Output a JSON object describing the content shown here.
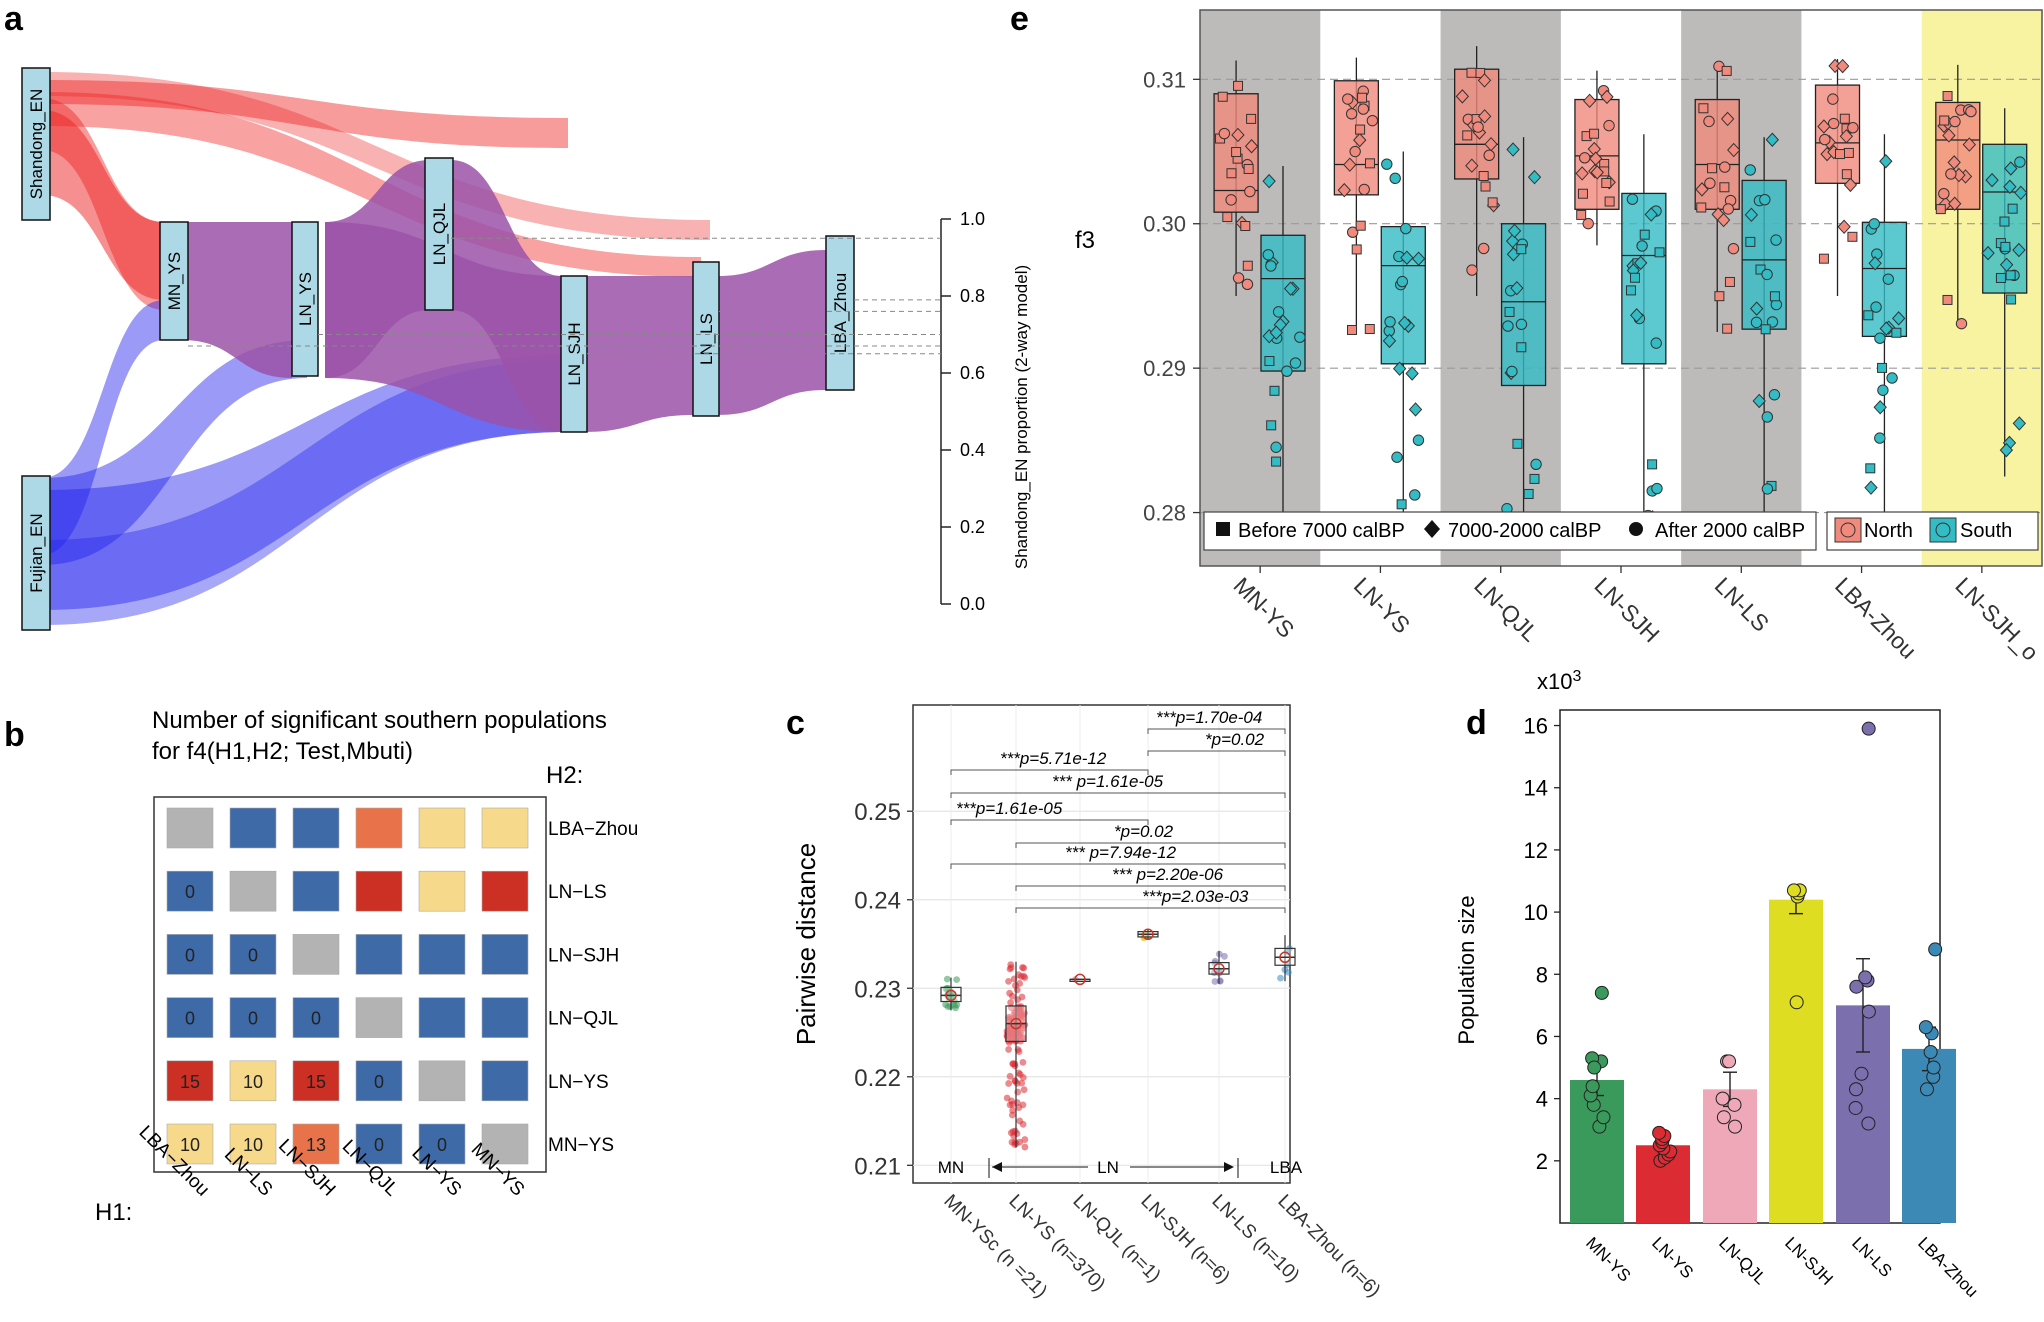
{
  "colors": {
    "shandong": "#ee2222",
    "fujian": "#2222ee",
    "purple": "#9b52a8",
    "node_fill": "#add8e6",
    "north": "#f08a7c",
    "south": "#33bcc4",
    "panel_gray": "#bdbaba",
    "panel_yellow": "#f7f3a0"
  },
  "panel_a": {
    "label": "a",
    "nodes": [
      "Shandong_EN",
      "Fujian_EN",
      "MN_YS",
      "LN_YS",
      "LN_QJL",
      "LN_SJH",
      "LN_LS",
      "LBA_Zhou"
    ],
    "axis_label": "Shandong_EN proportion (2-way model)",
    "ticks": [
      0.0,
      0.2,
      0.4,
      0.6,
      0.8,
      1.0
    ],
    "tick_labels": [
      "0.0",
      "0.2",
      "0.4",
      "0.6",
      "0.8",
      "1.0"
    ],
    "proportions": {
      "LN_QJL": 0.95,
      "LBA_Zhou": 0.79,
      "LN_LS": 0.76,
      "LN_YS": 0.7,
      "MN_YS": 0.67,
      "LN_SJH": 0.65
    }
  },
  "panel_b": {
    "label": "b",
    "title_line1": "Number of significant southern populations",
    "title_line2": "for f4(H1,H2; Test,Mbuti)",
    "h1_label": "H1:",
    "h2_label": "H2:",
    "columns": [
      "LBA−Zhou",
      "LN−LS",
      "LN−SJH",
      "LN−QJL",
      "LN−YS",
      "MN−YS"
    ],
    "rows": [
      "LBA−Zhou",
      "LN−LS",
      "LN−SJH",
      "LN−QJL",
      "LN−YS",
      "MN−YS"
    ],
    "cells": [
      [
        {
          "c": "g",
          "t": ""
        },
        {
          "c": "b",
          "t": ""
        },
        {
          "c": "b",
          "t": ""
        },
        {
          "c": "o",
          "t": ""
        },
        {
          "c": "y",
          "t": ""
        },
        {
          "c": "y",
          "t": ""
        }
      ],
      [
        {
          "c": "b",
          "t": "0"
        },
        {
          "c": "g",
          "t": ""
        },
        {
          "c": "b",
          "t": ""
        },
        {
          "c": "r",
          "t": ""
        },
        {
          "c": "y",
          "t": ""
        },
        {
          "c": "r",
          "t": ""
        }
      ],
      [
        {
          "c": "b",
          "t": "0"
        },
        {
          "c": "b",
          "t": "0"
        },
        {
          "c": "g",
          "t": ""
        },
        {
          "c": "b",
          "t": ""
        },
        {
          "c": "b",
          "t": ""
        },
        {
          "c": "b",
          "t": ""
        }
      ],
      [
        {
          "c": "b",
          "t": "0"
        },
        {
          "c": "b",
          "t": "0"
        },
        {
          "c": "b",
          "t": "0"
        },
        {
          "c": "g",
          "t": ""
        },
        {
          "c": "b",
          "t": ""
        },
        {
          "c": "b",
          "t": ""
        }
      ],
      [
        {
          "c": "r",
          "t": "15"
        },
        {
          "c": "y",
          "t": "10"
        },
        {
          "c": "r",
          "t": "15"
        },
        {
          "c": "b",
          "t": "0"
        },
        {
          "c": "g",
          "t": ""
        },
        {
          "c": "b",
          "t": ""
        }
      ],
      [
        {
          "c": "y",
          "t": "10"
        },
        {
          "c": "y",
          "t": "10"
        },
        {
          "c": "o",
          "t": "13"
        },
        {
          "c": "b",
          "t": "0"
        },
        {
          "c": "b",
          "t": "0"
        },
        {
          "c": "g",
          "t": ""
        }
      ]
    ],
    "cell_colors": {
      "g": "#b3b3b3",
      "b": "#3f6aa8",
      "o": "#e8734a",
      "y": "#f7d98b",
      "r": "#cc3024"
    }
  },
  "chart_data": [
    {
      "panel": "c",
      "type": "boxplot",
      "ylabel": "Pairwise distance",
      "ylim": [
        0.208,
        0.262
      ],
      "yticks": [
        0.21,
        0.22,
        0.23,
        0.24,
        0.25
      ],
      "ytick_labels": [
        "0.21",
        "0.22",
        "0.23",
        "0.24",
        "0.25"
      ],
      "categories": [
        "MN-YSc (n =21)",
        "LN-YS (n=370)",
        "LN-QJL (n=1)",
        "LN-SJH (n=6)",
        "LN-LS (n=10)",
        "LBA-Zhou (n=6)"
      ],
      "box_stats": [
        {
          "q1": 0.2285,
          "med": 0.2292,
          "q3": 0.2301,
          "lo": 0.2275,
          "hi": 0.2312,
          "color": "#3a9a5b"
        },
        {
          "q1": 0.224,
          "med": 0.226,
          "q3": 0.228,
          "lo": 0.212,
          "hi": 0.233,
          "color": "#dd2b33"
        },
        {
          "q1": 0.231,
          "med": 0.231,
          "q3": 0.231,
          "lo": 0.231,
          "hi": 0.231,
          "color": "#e07a8a"
        },
        {
          "q1": 0.2358,
          "med": 0.2361,
          "q3": 0.2364,
          "lo": 0.2355,
          "hi": 0.2367,
          "color": "#d6c21a"
        },
        {
          "q1": 0.2316,
          "med": 0.2322,
          "q3": 0.2329,
          "lo": 0.2305,
          "hi": 0.2342,
          "color": "#7a6fb0"
        },
        {
          "q1": 0.2326,
          "med": 0.2335,
          "q3": 0.2345,
          "lo": 0.2308,
          "hi": 0.236,
          "color": "#3a8ac6"
        }
      ],
      "brackets": [
        {
          "from": 3,
          "to": 5,
          "text": "***p=1.70e-04"
        },
        {
          "from": 3,
          "to": 5,
          "text": "*p=0.02"
        },
        {
          "from": 0,
          "to": 3,
          "text": "***p=5.71e-12"
        },
        {
          "from": 0,
          "to": 5,
          "text": "*** p=1.61e-05"
        },
        {
          "from": 0,
          "to": 3,
          "text": "***p=1.61e-05"
        },
        {
          "from": 1,
          "to": 5,
          "text": "*p=0.02"
        },
        {
          "from": 0,
          "to": 5,
          "text": "*** p=7.94e-12"
        },
        {
          "from": 1,
          "to": 5,
          "text": "*** p=2.20e-06"
        },
        {
          "from": 1,
          "to": 5,
          "text": "***p=2.03e-03"
        }
      ],
      "period_labels": [
        "MN",
        "LN",
        "LBA"
      ]
    },
    {
      "panel": "d",
      "type": "bar",
      "ylabel": "Population size",
      "multiplier_label": "x10",
      "multiplier_exp": "3",
      "ylim": [
        0,
        16.5
      ],
      "yticks": [
        2,
        4,
        6,
        8,
        10,
        12,
        14,
        16
      ],
      "ytick_labels": [
        "2",
        "4",
        "6",
        "8",
        "10",
        "12",
        "14",
        "16"
      ],
      "categories": [
        "MN-YS",
        "LN-YS",
        "LN-QJL",
        "LN-SJH",
        "LN-LS",
        "LBA-Zhou"
      ],
      "values": [
        4.6,
        2.5,
        4.3,
        10.4,
        7.0,
        5.6
      ],
      "errors": [
        0.5,
        0.15,
        0.55,
        0.45,
        1.5,
        0.7
      ],
      "colors": [
        "#3a9a5b",
        "#dd2b33",
        "#eea8b8",
        "#dedd22",
        "#7b70ad",
        "#3b89b4"
      ],
      "points": [
        [
          3.1,
          3.4,
          3.8,
          4.1,
          4.4,
          5.2,
          5.3,
          5.0,
          7.4
        ],
        [
          2.0,
          2.1,
          2.2,
          2.3,
          2.4,
          2.5,
          2.6,
          2.7,
          2.8,
          2.9
        ],
        [
          3.1,
          3.4,
          3.8,
          4.0,
          5.2,
          5.2
        ],
        [
          7.1,
          10.5,
          10.6,
          10.7,
          10.7
        ],
        [
          3.2,
          3.7,
          4.3,
          4.8,
          6.8,
          7.6,
          7.8,
          7.9,
          15.9
        ],
        [
          4.3,
          4.7,
          5.0,
          5.5,
          6.1,
          6.3,
          8.8
        ]
      ]
    },
    {
      "panel": "e",
      "type": "boxplot",
      "ylabel": "f3",
      "ylim": [
        0.2763,
        0.3148
      ],
      "yticks": [
        0.28,
        0.29,
        0.3,
        0.31
      ],
      "ytick_labels": [
        "0.28",
        "0.29",
        "0.30",
        "0.31"
      ],
      "categories": [
        "MN-YS",
        "LN-YS",
        "LN-QJL",
        "LN-SJH",
        "LN-LS",
        "LBA-Zhou",
        "LN-SJH_o"
      ],
      "north": [
        {
          "q1": 0.3008,
          "med": 0.3023,
          "q3": 0.309,
          "lo": 0.295,
          "hi": 0.3113
        },
        {
          "q1": 0.302,
          "med": 0.3041,
          "q3": 0.3099,
          "lo": 0.2925,
          "hi": 0.3115
        },
        {
          "q1": 0.3031,
          "med": 0.3055,
          "q3": 0.3107,
          "lo": 0.295,
          "hi": 0.3123
        },
        {
          "q1": 0.301,
          "med": 0.3047,
          "q3": 0.3086,
          "lo": 0.2985,
          "hi": 0.3106
        },
        {
          "q1": 0.301,
          "med": 0.3041,
          "q3": 0.3086,
          "lo": 0.2925,
          "hi": 0.311
        },
        {
          "q1": 0.3028,
          "med": 0.3056,
          "q3": 0.3096,
          "lo": 0.295,
          "hi": 0.3114
        },
        {
          "q1": 0.301,
          "med": 0.3058,
          "q3": 0.3084,
          "lo": 0.293,
          "hi": 0.311
        }
      ],
      "south": [
        {
          "q1": 0.2898,
          "med": 0.2962,
          "q3": 0.2992,
          "lo": 0.279,
          "hi": 0.304
        },
        {
          "q1": 0.2903,
          "med": 0.2971,
          "q3": 0.2998,
          "lo": 0.28,
          "hi": 0.305
        },
        {
          "q1": 0.2888,
          "med": 0.2946,
          "q3": 0.3,
          "lo": 0.278,
          "hi": 0.306
        },
        {
          "q1": 0.2903,
          "med": 0.2978,
          "q3": 0.3021,
          "lo": 0.279,
          "hi": 0.3062
        },
        {
          "q1": 0.2927,
          "med": 0.2975,
          "q3": 0.303,
          "lo": 0.28,
          "hi": 0.306
        },
        {
          "q1": 0.2922,
          "med": 0.2969,
          "q3": 0.3001,
          "lo": 0.2795,
          "hi": 0.3062
        },
        {
          "q1": 0.2952,
          "med": 0.3022,
          "q3": 0.3055,
          "lo": 0.2825,
          "hi": 0.308
        }
      ],
      "legend_shapes": [
        "Before 7000 calBP",
        "7000-2000 calBP",
        "After 2000 calBP"
      ],
      "legend_regions": [
        "North",
        "South"
      ]
    }
  ]
}
